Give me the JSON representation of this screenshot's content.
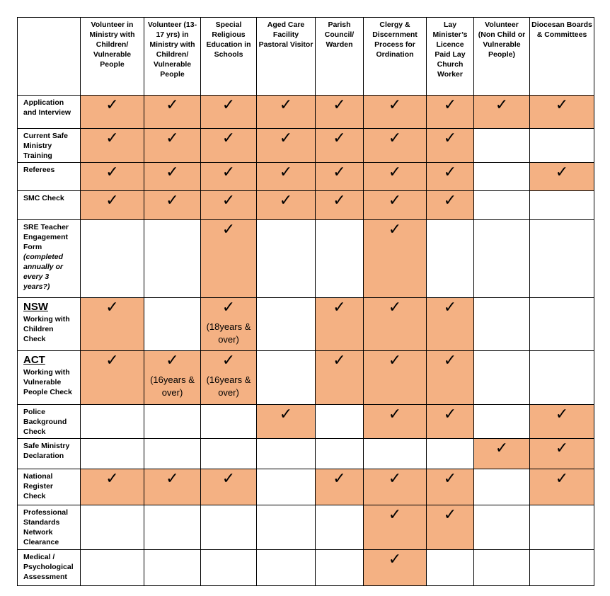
{
  "columns": [
    "Volunteer in Ministry with Children/ Vulnerable People",
    "Volunteer (13-17 yrs) in Ministry with Children/ Vulnerable People",
    "Special Religious Education in Schools",
    "Aged Care Facility Pastoral Visitor",
    "Parish Council/ Warden",
    "Clergy & Discernment Process for Ordination",
    "Lay Minister’s Licence Paid Lay Church Worker",
    "Volunteer (Non Child or Vulnerable People)",
    "Diocesan Boards & Committees"
  ],
  "tick_glyph": "✓",
  "highlight_color": "#f4b183",
  "rows": [
    {
      "label": "Application and Interview",
      "checks": [
        1,
        1,
        1,
        1,
        1,
        1,
        1,
        1,
        1
      ]
    },
    {
      "label": "Current Safe Ministry Training",
      "checks": [
        1,
        1,
        1,
        1,
        1,
        1,
        1,
        0,
        0
      ]
    },
    {
      "label": "Referees",
      "checks": [
        1,
        1,
        1,
        1,
        1,
        1,
        1,
        0,
        1
      ]
    },
    {
      "label": "SMC Check",
      "checks": [
        1,
        1,
        1,
        1,
        1,
        1,
        1,
        0,
        0
      ]
    },
    {
      "label": "SRE Teacher Engagement Form",
      "note": "(completed annually or every 3 years?)",
      "checks": [
        0,
        0,
        1,
        0,
        0,
        1,
        0,
        0,
        0
      ]
    },
    {
      "state": "NSW",
      "label": "Working with Children Check",
      "checks": [
        1,
        0,
        1,
        0,
        1,
        1,
        1,
        0,
        0
      ],
      "cell_notes": {
        "2": "(18years & over)"
      }
    },
    {
      "state": "ACT",
      "label": "Working with Vulnerable People Check",
      "checks": [
        1,
        1,
        1,
        0,
        1,
        1,
        1,
        0,
        0
      ],
      "cell_notes": {
        "1": "(16years & over)",
        "2": "(16years & over)"
      }
    },
    {
      "label": "Police Background Check",
      "checks": [
        0,
        0,
        0,
        1,
        0,
        1,
        1,
        0,
        1
      ]
    },
    {
      "label": "Safe Ministry Declaration",
      "checks": [
        0,
        0,
        0,
        0,
        0,
        0,
        0,
        1,
        1
      ]
    },
    {
      "label": "National Register Check",
      "checks": [
        1,
        1,
        1,
        0,
        1,
        1,
        1,
        0,
        1
      ]
    },
    {
      "label": "Professional Standards Network Clearance",
      "checks": [
        0,
        0,
        0,
        0,
        0,
        1,
        1,
        0,
        0
      ]
    },
    {
      "label": "Medical / Psychological Assessment",
      "checks": [
        0,
        0,
        0,
        0,
        0,
        1,
        0,
        0,
        0
      ]
    }
  ]
}
